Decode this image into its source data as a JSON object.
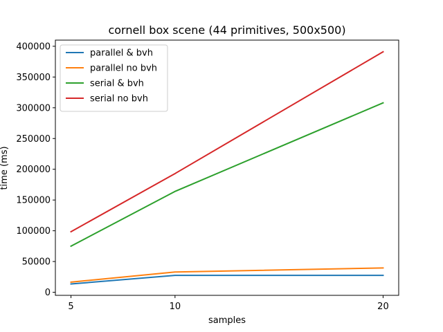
{
  "chart_data": {
    "type": "line",
    "title": "cornell box scene (44 primitives, 500x500)",
    "xlabel": "samples",
    "ylabel": "time (ms)",
    "x": [
      5,
      10,
      20
    ],
    "xticks": [
      5,
      10,
      20
    ],
    "yticks": [
      0,
      50000,
      100000,
      150000,
      200000,
      250000,
      300000,
      350000,
      400000
    ],
    "xlim": [
      4.25,
      20.75
    ],
    "ylim": [
      -5000,
      410000
    ],
    "grid": false,
    "legend_position": "top-left",
    "series": [
      {
        "name": "parallel & bvh",
        "color": "#1f77b4",
        "values": [
          13500,
          27500,
          27500
        ]
      },
      {
        "name": "parallel no bvh",
        "color": "#ff7f0e",
        "values": [
          16500,
          33000,
          39500
        ]
      },
      {
        "name": "serial & bvh",
        "color": "#2ca02c",
        "values": [
          75000,
          164000,
          308000
        ]
      },
      {
        "name": "serial no bvh",
        "color": "#d62728",
        "values": [
          98500,
          193000,
          391000
        ]
      }
    ]
  }
}
